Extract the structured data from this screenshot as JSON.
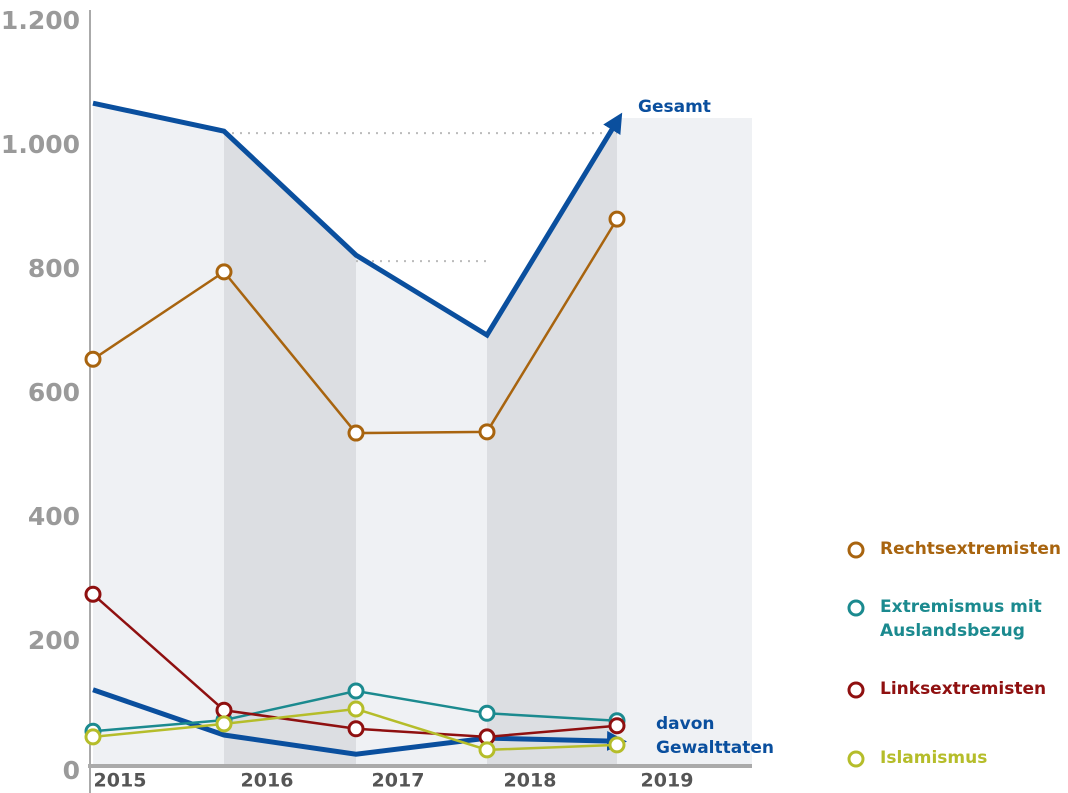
{
  "chart_data": {
    "type": "line",
    "categories": [
      "2015",
      "2016",
      "2017",
      "2018",
      "2019"
    ],
    "ylim": [
      0,
      1200
    ],
    "yticks": [
      0,
      200,
      400,
      600,
      800,
      {
        "value": 1000,
        "label": "1.000"
      },
      {
        "value": 1200,
        "label": "1.200"
      }
    ],
    "series": [
      {
        "name": "Gesamt",
        "color": "#0a4f9e",
        "values": [
          1069,
          1024,
          824,
          695,
          1040
        ],
        "arrow": true
      },
      {
        "name": "davon Gewalttaten",
        "color": "#0a4f9e",
        "values": [
          123,
          50,
          19,
          45,
          40
        ],
        "arrow": true
      },
      {
        "name": "Rechtsextremisten",
        "color": "#a8640f",
        "values": [
          656,
          797,
          537,
          539,
          882
        ],
        "legend": true
      },
      {
        "name": "Extremismus mit Auslandsbezug",
        "color": "#1b8a8f",
        "values": [
          56,
          74,
          121,
          85,
          73
        ],
        "legend": true
      },
      {
        "name": "Linksextremisten",
        "color": "#8f1010",
        "values": [
          277,
          90,
          60,
          47,
          65
        ],
        "legend": true
      },
      {
        "name": "Islamismus",
        "color": "#b5bd2a",
        "values": [
          47,
          68,
          92,
          26,
          34
        ],
        "legend": true
      }
    ]
  }
}
